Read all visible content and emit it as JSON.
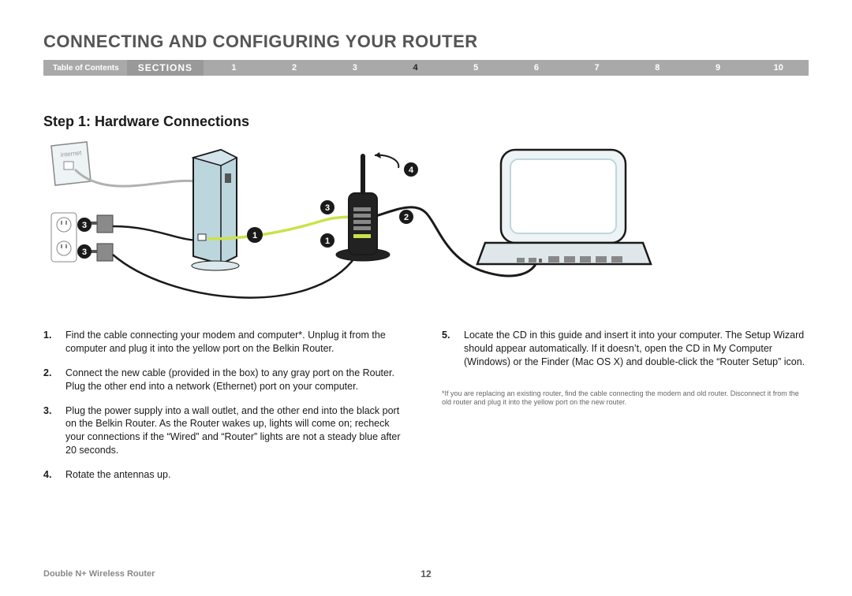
{
  "header_title": "CONNECTING AND CONFIGURING YOUR ROUTER",
  "nav": {
    "toc_label": "Table of Contents",
    "sections_label": "SECTIONS",
    "numbers": [
      "1",
      "2",
      "3",
      "4",
      "5",
      "6",
      "7",
      "8",
      "9",
      "10"
    ],
    "active_index": 3
  },
  "step_heading": "Step 1: Hardware Connections",
  "diagram": {
    "callouts_left_outlets": [
      "3",
      "3"
    ],
    "callout_modem_cable": "1",
    "callout_router_power": "1",
    "callout_router_lan": "2",
    "callout_router_wan": "3",
    "callout_antenna": "4",
    "colors": {
      "outline": "#1a1a1a",
      "modem_fill": "#bcd6de",
      "light_fill": "#eef3f5",
      "yellow_cable": "#cbe24a",
      "gray_cable": "#b0b0b0",
      "router_fill": "#222",
      "callout_bg": "#1a1a1a",
      "callout_fg": "#ffffff"
    }
  },
  "left_steps": [
    {
      "n": "1.",
      "t": "Find the cable connecting your modem and computer*. Unplug it from the computer and plug it into the yellow port on the Belkin Router."
    },
    {
      "n": "2.",
      "t": "Connect the new cable (provided in the box) to any gray port on the Router. Plug the other end into a network (Ethernet) port on your computer."
    },
    {
      "n": "3.",
      "t": "Plug the power supply into a wall outlet, and the other end into the black port on the Belkin Router. As the Router wakes up, lights will come on; recheck your connections if the “Wired” and “Router” lights are not a steady blue after 20 seconds."
    },
    {
      "n": "4.",
      "t": "Rotate the antennas up."
    }
  ],
  "right_steps": [
    {
      "n": "5.",
      "t": "Locate the CD in this guide and insert it into your computer. The Setup Wizard should appear automatically. If it doesn’t, open the CD in My Computer (Windows) or the Finder (Mac OS X) and double-click the “Router Setup” icon."
    }
  ],
  "footnote": "*If you are replacing an existing router, find the cable connecting the modem and old router. Disconnect it from the old router and plug it into the yellow port on the new router.",
  "footer_model": "Double N+ Wireless Router",
  "page_number": "12"
}
